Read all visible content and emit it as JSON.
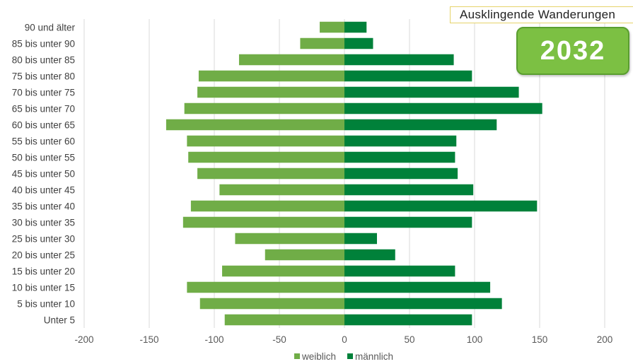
{
  "scenario_label": "Ausklingende Wanderungen",
  "year": "2032",
  "colors": {
    "female": "#70ad47",
    "male": "#00813a",
    "grid": "#d9d9d9"
  },
  "chart_data": {
    "type": "bar",
    "orientation": "horizontal",
    "stacked": true,
    "categories": [
      "90 und älter",
      "85 bis unter 90",
      "80 bis unter 85",
      "75 bis unter 80",
      "70 bis unter 75",
      "65 bis unter 70",
      "60 bis unter 65",
      "55 bis unter 60",
      "50 bis unter 55",
      "45 bis unter 50",
      "40 bis unter 45",
      "35 bis unter 40",
      "30 bis unter 35",
      "25 bis unter 30",
      "20 bis unter 25",
      "15 bis unter 20",
      "10 bis unter 15",
      "5 bis unter 10",
      "Unter 5"
    ],
    "series": [
      {
        "name": "weiblich",
        "values": [
          -19,
          -34,
          -81,
          -112,
          -113,
          -123,
          -137,
          -121,
          -120,
          -113,
          -96,
          -118,
          -124,
          -84,
          -61,
          -94,
          -121,
          -111,
          -92
        ]
      },
      {
        "name": "männlich",
        "values": [
          17,
          22,
          84,
          98,
          134,
          152,
          117,
          86,
          85,
          87,
          99,
          148,
          98,
          25,
          39,
          85,
          112,
          121,
          98
        ]
      }
    ],
    "xlim": [
      -200,
      200
    ],
    "xticks": [
      -200,
      -150,
      -100,
      -50,
      0,
      50,
      100,
      150,
      200
    ],
    "xtick_labels": [
      "-200",
      "-150",
      "-100",
      "-50",
      "0",
      "50",
      "100",
      "150",
      "200"
    ],
    "grid": "vertical",
    "legend": "bottom-center"
  }
}
